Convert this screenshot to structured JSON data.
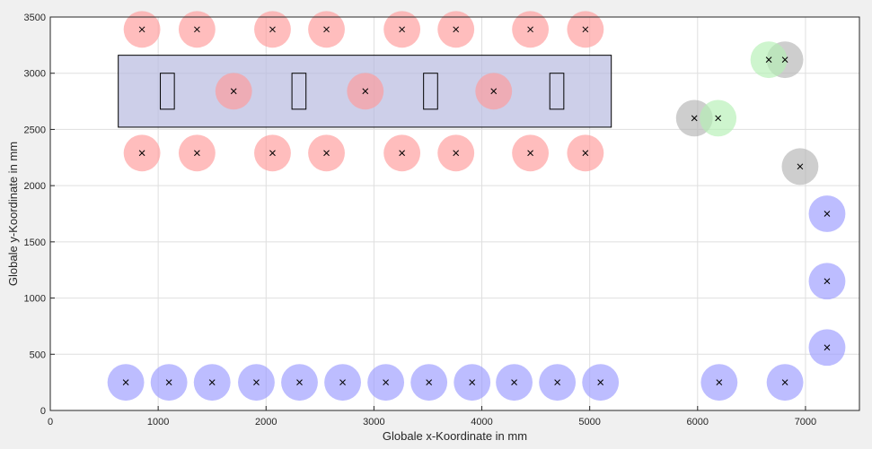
{
  "chart_data": {
    "type": "scatter",
    "xlabel": "Globale x-Koordinate in mm",
    "ylabel": "Globale y-Koordinate in mm",
    "xlim": [
      0,
      7500
    ],
    "ylim": [
      0,
      3500
    ],
    "x_ticks": [
      0,
      1000,
      2000,
      3000,
      4000,
      5000,
      6000,
      7000
    ],
    "y_ticks": [
      0,
      500,
      1000,
      1500,
      2000,
      2500,
      3000,
      3500
    ],
    "grid": true,
    "rectangles": [
      {
        "x0": 630,
        "x1": 5200,
        "y0": 2520,
        "y1": 3160,
        "fill": "#b8bbdf",
        "stroke": "#000000"
      }
    ],
    "small_rectangles": [
      {
        "x0": 1020,
        "x1": 1150,
        "y0": 2680,
        "y1": 3000
      },
      {
        "x0": 2240,
        "x1": 2370,
        "y0": 2680,
        "y1": 3000
      },
      {
        "x0": 3460,
        "x1": 3590,
        "y0": 2680,
        "y1": 3000
      },
      {
        "x0": 4630,
        "x1": 4760,
        "y0": 2680,
        "y1": 3000
      }
    ],
    "marker_radius_mm": 170,
    "series": [
      {
        "color": "#ff9999",
        "points": [
          [
            850,
            3390
          ],
          [
            1360,
            3390
          ],
          [
            2060,
            3390
          ],
          [
            2560,
            3390
          ],
          [
            3260,
            3390
          ],
          [
            3760,
            3390
          ],
          [
            4450,
            3390
          ],
          [
            4960,
            3390
          ],
          [
            850,
            2290
          ],
          [
            1360,
            2290
          ],
          [
            2060,
            2290
          ],
          [
            2560,
            2290
          ],
          [
            3260,
            2290
          ],
          [
            3760,
            2290
          ],
          [
            4450,
            2290
          ],
          [
            4960,
            2290
          ],
          [
            1700,
            2840
          ],
          [
            2920,
            2840
          ],
          [
            4110,
            2840
          ]
        ]
      },
      {
        "color": "#9999ff",
        "points": [
          [
            700,
            250
          ],
          [
            1100,
            250
          ],
          [
            1500,
            250
          ],
          [
            1910,
            250
          ],
          [
            2310,
            250
          ],
          [
            2710,
            250
          ],
          [
            3110,
            250
          ],
          [
            3510,
            250
          ],
          [
            3910,
            250
          ],
          [
            4300,
            250
          ],
          [
            4700,
            250
          ],
          [
            5100,
            250
          ],
          [
            6200,
            250
          ],
          [
            6810,
            250
          ],
          [
            7200,
            560
          ],
          [
            7200,
            1150
          ],
          [
            7200,
            1750
          ]
        ]
      },
      {
        "color": "#b3b3b3",
        "points": [
          [
            5970,
            2600
          ],
          [
            6810,
            3120
          ],
          [
            6950,
            2170
          ]
        ]
      },
      {
        "color": "#b3f0b3",
        "points": [
          [
            6190,
            2600
          ],
          [
            6660,
            3120
          ]
        ]
      }
    ]
  }
}
